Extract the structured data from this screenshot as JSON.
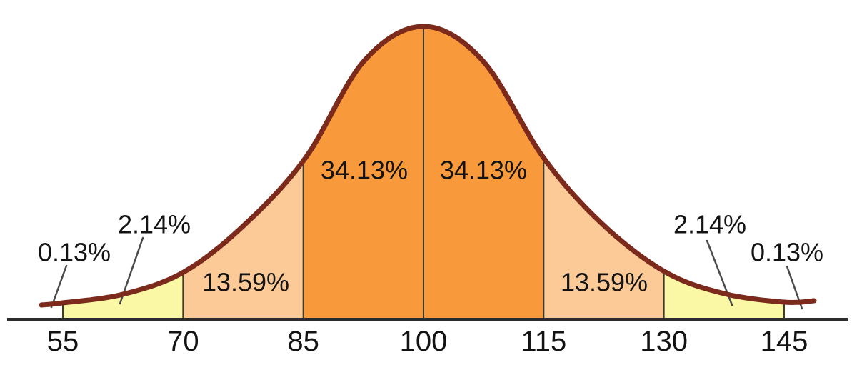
{
  "chart_data": {
    "type": "area",
    "description": "Bell curve (normal distribution) divided into standard-deviation bands with percentage labels",
    "title": "",
    "xlabel": "",
    "ylabel": "",
    "grid": false,
    "legend": false,
    "xlim": [
      55,
      145
    ],
    "x_ticks": [
      55,
      70,
      85,
      100,
      115,
      130,
      145
    ],
    "segments": [
      {
        "from": null,
        "to": 55,
        "percent": "0.13%",
        "band": "tail",
        "label_style": "callout"
      },
      {
        "from": 55,
        "to": 70,
        "percent": "2.14%",
        "band": "yellow",
        "label_style": "callout"
      },
      {
        "from": 70,
        "to": 85,
        "percent": "13.59%",
        "band": "peach",
        "label_style": "inside"
      },
      {
        "from": 85,
        "to": 100,
        "percent": "34.13%",
        "band": "orange",
        "label_style": "inside"
      },
      {
        "from": 100,
        "to": 115,
        "percent": "34.13%",
        "band": "orange",
        "label_style": "inside"
      },
      {
        "from": 115,
        "to": 130,
        "percent": "13.59%",
        "band": "peach",
        "label_style": "inside"
      },
      {
        "from": 130,
        "to": 145,
        "percent": "2.14%",
        "band": "yellow",
        "label_style": "callout"
      },
      {
        "from": 145,
        "to": null,
        "percent": "0.13%",
        "band": "tail",
        "label_style": "callout"
      }
    ],
    "colors": {
      "orange": "#F8993B",
      "peach": "#FBCA96",
      "yellow": "#FBF8A5",
      "curve_stroke": "#7B2A1C",
      "axis": "#2B2B2B",
      "divider": "#3B3B30",
      "leader_line": "#4A4A4A",
      "text": "#131313",
      "background": "#FFFFFF"
    }
  }
}
